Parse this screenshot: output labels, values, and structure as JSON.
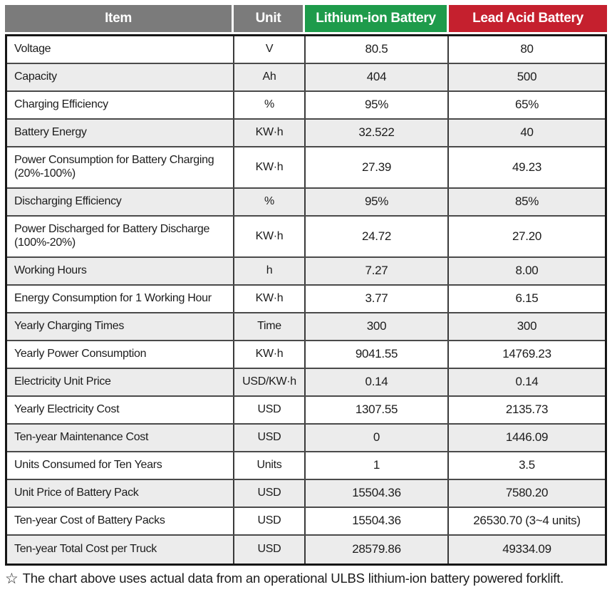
{
  "chart_data": {
    "type": "table",
    "columns": [
      {
        "label": "Item",
        "header_bg": "#7b7b7b"
      },
      {
        "label": "Unit",
        "header_bg": "#7b7b7b"
      },
      {
        "label": "Lithium-ion Battery",
        "header_bg": "#1e9b4b"
      },
      {
        "label": "Lead Acid Battery",
        "header_bg": "#c5202e"
      }
    ],
    "rows": [
      {
        "item": "Voltage",
        "unit": "V",
        "lithium": "80.5",
        "lead": "80"
      },
      {
        "item": "Capacity",
        "unit": "Ah",
        "lithium": "404",
        "lead": "500"
      },
      {
        "item": "Charging Efficiency",
        "unit": "%",
        "lithium": "95%",
        "lead": "65%"
      },
      {
        "item": "Battery Energy",
        "unit": "KW·h",
        "lithium": "32.522",
        "lead": "40"
      },
      {
        "item": "Power Consumption for Battery Charging\n(20%-100%)",
        "unit": "KW·h",
        "lithium": "27.39",
        "lead": "49.23",
        "tall": true
      },
      {
        "item": "Discharging Efficiency",
        "unit": "%",
        "lithium": "95%",
        "lead": "85%"
      },
      {
        "item": "Power Discharged for Battery Discharge\n(100%-20%)",
        "unit": "KW·h",
        "lithium": "24.72",
        "lead": "27.20",
        "tall": true
      },
      {
        "item": "Working Hours",
        "unit": "h",
        "lithium": "7.27",
        "lead": "8.00"
      },
      {
        "item": "Energy Consumption for 1 Working Hour",
        "unit": "KW·h",
        "lithium": "3.77",
        "lead": "6.15"
      },
      {
        "item": "Yearly Charging Times",
        "unit": "Time",
        "lithium": "300",
        "lead": "300"
      },
      {
        "item": "Yearly Power Consumption",
        "unit": "KW·h",
        "lithium": "9041.55",
        "lead": "14769.23"
      },
      {
        "item": "Electricity Unit Price",
        "unit": "USD/KW·h",
        "lithium": "0.14",
        "lead": "0.14"
      },
      {
        "item": "Yearly Electricity Cost",
        "unit": "USD",
        "lithium": "1307.55",
        "lead": "2135.73"
      },
      {
        "item": "Ten-year Maintenance Cost",
        "unit": "USD",
        "lithium": "0",
        "lead": "1446.09"
      },
      {
        "item": "Units Consumed for Ten Years",
        "unit": "Units",
        "lithium": "1",
        "lead": "3.5"
      },
      {
        "item": "Unit Price of Battery Pack",
        "unit": "USD",
        "lithium": "15504.36",
        "lead": "7580.20"
      },
      {
        "item": "Ten-year Cost of Battery Packs",
        "unit": "USD",
        "lithium": "15504.36",
        "lead": "26530.70 (3~4 units)"
      },
      {
        "item": "Ten-year Total Cost per Truck",
        "unit": "USD",
        "lithium": "28579.86",
        "lead": "49334.09"
      }
    ],
    "footnote_star": "☆",
    "footnote": "The chart above uses actual data from an operational ULBS lithium-ion battery powered forklift.",
    "style": {
      "stripe_bg": "#ececec",
      "row_bg": "#ffffff",
      "grid_line": "#3a3a3a",
      "outer_border": "#161616",
      "header_text": "#ffffff"
    }
  }
}
